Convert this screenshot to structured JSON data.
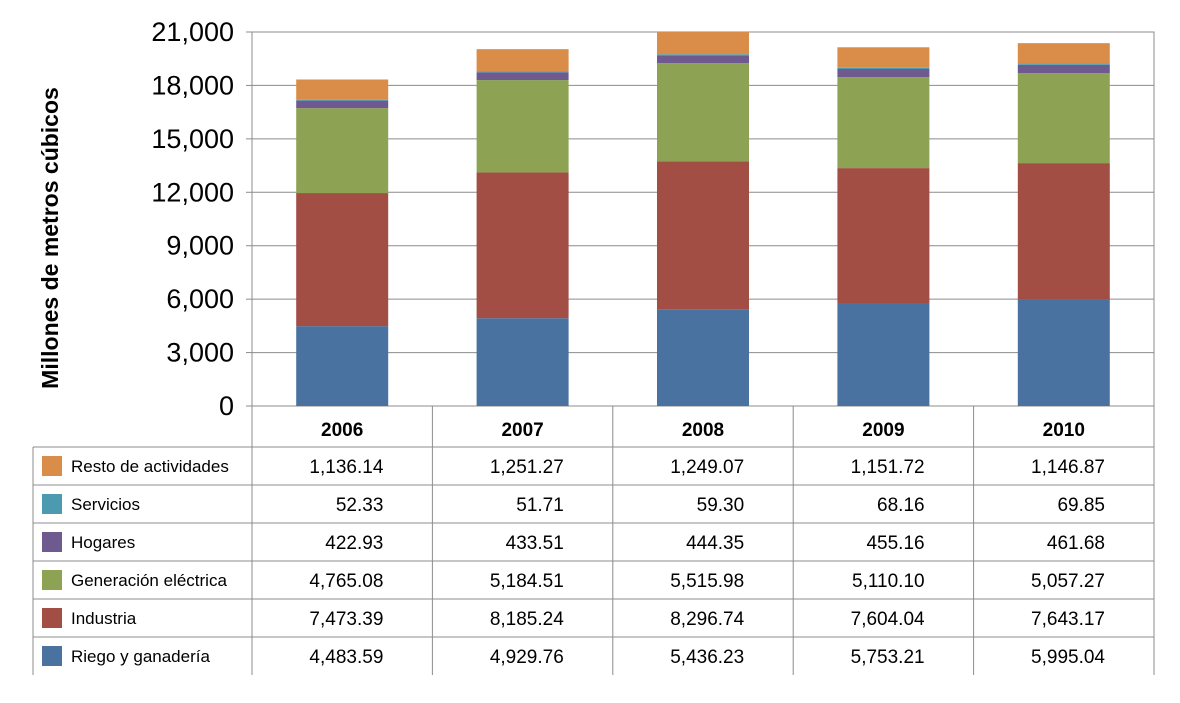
{
  "chart_data": {
    "type": "bar",
    "stacked": true,
    "title": "",
    "xlabel": "",
    "ylabel": "Millones de metros cúbicos",
    "ylim": [
      0,
      21000
    ],
    "yticks": [
      "0",
      "3,000",
      "6,000",
      "9,000",
      "12,000",
      "15,000",
      "18,000",
      "21,000"
    ],
    "yticks_values": [
      0,
      3000,
      6000,
      9000,
      12000,
      15000,
      18000,
      21000
    ],
    "categories": [
      "2006",
      "2007",
      "2008",
      "2009",
      "2010"
    ],
    "grid": true,
    "legend_position": "data-table-left",
    "series": [
      {
        "name": "Riego y ganadería",
        "color": "#4a72a0",
        "values": [
          4483.59,
          4929.76,
          5436.23,
          5753.21,
          5995.04
        ],
        "labels": [
          "4,483.59",
          "4,929.76",
          "5,436.23",
          "5,753.21",
          "5,995.04"
        ]
      },
      {
        "name": "Industria",
        "color": "#a24e45",
        "values": [
          7473.39,
          8185.24,
          8296.74,
          7604.04,
          7643.17
        ],
        "labels": [
          "7,473.39",
          "8,185.24",
          "8,296.74",
          "7,604.04",
          "7,643.17"
        ]
      },
      {
        "name": "Generación eléctrica",
        "color": "#8da353",
        "values": [
          4765.08,
          5184.51,
          5515.98,
          5110.1,
          5057.27
        ],
        "labels": [
          "4,765.08",
          "5,184.51",
          "5,515.98",
          "5,110.10",
          "5,057.27"
        ]
      },
      {
        "name": "Hogares",
        "color": "#6e5a8f",
        "values": [
          422.93,
          433.51,
          444.35,
          455.16,
          461.68
        ],
        "labels": [
          "422.93",
          "433.51",
          "444.35",
          "455.16",
          "461.68"
        ]
      },
      {
        "name": "Servicios",
        "color": "#4c9aaf",
        "values": [
          52.33,
          51.71,
          59.3,
          68.16,
          69.85
        ],
        "labels": [
          "52.33",
          "51.71",
          "59.30",
          "68.16",
          "69.85"
        ]
      },
      {
        "name": "Resto de actividades",
        "color": "#d98d48",
        "values": [
          1136.14,
          1251.27,
          1249.07,
          1151.72,
          1146.87
        ],
        "labels": [
          "1,136.14",
          "1,251.27",
          "1,249.07",
          "1,151.72",
          "1,146.87"
        ]
      }
    ]
  }
}
